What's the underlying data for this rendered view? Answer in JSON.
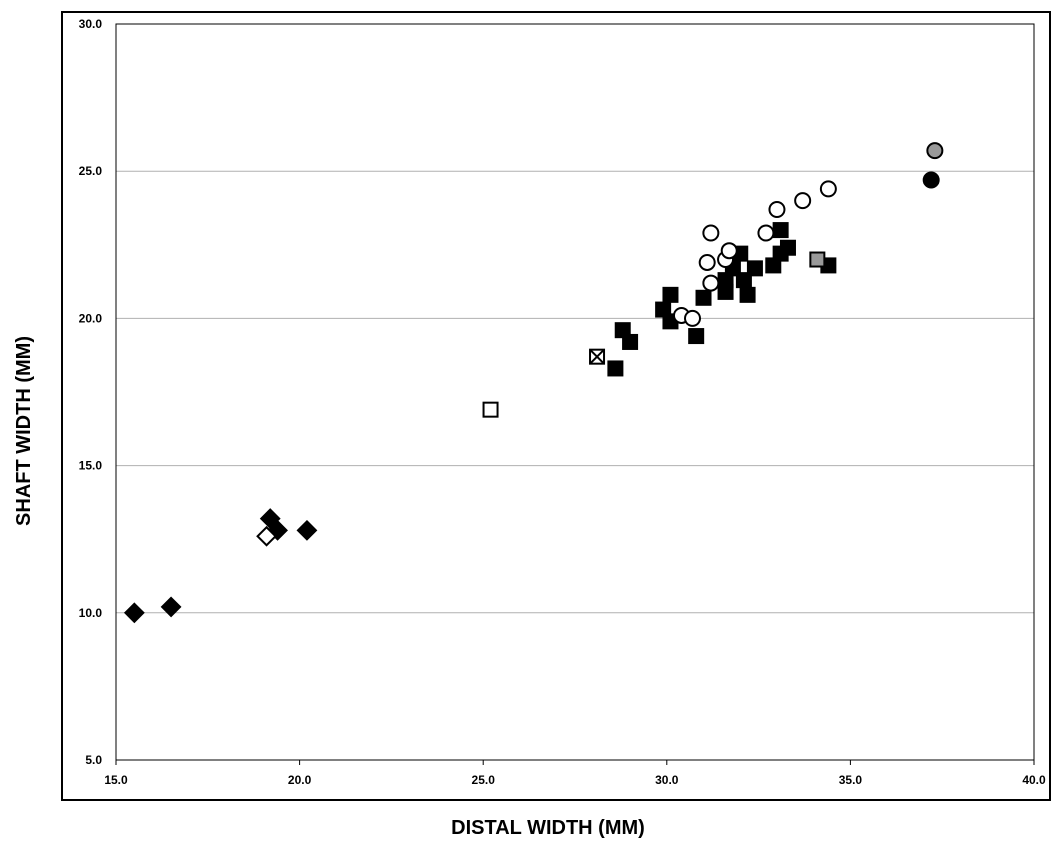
{
  "chart_data": {
    "type": "scatter",
    "title": "",
    "xlabel": "DISTAL WIDTH (MM)",
    "ylabel": "SHAFT WIDTH (MM)",
    "xlim": [
      15.0,
      40.0
    ],
    "ylim": [
      5.0,
      30.0
    ],
    "x_ticks": [
      "15.0",
      "20.0",
      "25.0",
      "30.0",
      "35.0",
      "40.0"
    ],
    "y_ticks": [
      "5.0",
      "10.0",
      "15.0",
      "20.0",
      "25.0",
      "30.0"
    ],
    "grid": "horizontal",
    "legend": "none",
    "colors": {
      "black": "#000000",
      "gray": "#999999",
      "white": "#ffffff",
      "grid": "#b0b0b0"
    },
    "series": [
      {
        "marker": "diamond",
        "fill": "black",
        "points": [
          [
            15.5,
            10.0
          ],
          [
            16.5,
            10.2
          ],
          [
            19.2,
            13.2
          ],
          [
            19.4,
            12.8
          ],
          [
            20.2,
            12.8
          ]
        ]
      },
      {
        "marker": "diamond",
        "fill": "white",
        "points": [
          [
            19.1,
            12.6
          ]
        ]
      },
      {
        "marker": "square",
        "fill": "white",
        "points": [
          [
            25.2,
            16.9
          ]
        ]
      },
      {
        "marker": "square",
        "fill": "crossed",
        "points": [
          [
            28.1,
            18.7
          ]
        ]
      },
      {
        "marker": "square",
        "fill": "black",
        "points": [
          [
            28.6,
            18.3
          ],
          [
            28.8,
            19.6
          ],
          [
            29.0,
            19.2
          ],
          [
            29.9,
            20.3
          ],
          [
            30.1,
            20.8
          ],
          [
            30.1,
            19.9
          ],
          [
            30.8,
            19.4
          ],
          [
            31.0,
            20.7
          ],
          [
            31.6,
            20.9
          ],
          [
            31.6,
            21.3
          ],
          [
            31.8,
            21.7
          ],
          [
            32.0,
            22.2
          ],
          [
            32.1,
            21.3
          ],
          [
            32.2,
            20.8
          ],
          [
            32.4,
            21.7
          ],
          [
            32.9,
            21.8
          ],
          [
            33.1,
            22.2
          ],
          [
            33.1,
            23.0
          ],
          [
            33.3,
            22.4
          ],
          [
            34.4,
            21.8
          ]
        ]
      },
      {
        "marker": "square",
        "fill": "gray",
        "points": [
          [
            34.1,
            22.0
          ]
        ]
      },
      {
        "marker": "circle",
        "fill": "white",
        "points": [
          [
            30.4,
            20.1
          ],
          [
            30.7,
            20.0
          ],
          [
            31.1,
            21.9
          ],
          [
            31.2,
            22.9
          ],
          [
            31.2,
            21.2
          ],
          [
            31.6,
            22.0
          ],
          [
            31.7,
            22.3
          ],
          [
            32.7,
            22.9
          ],
          [
            33.0,
            23.7
          ],
          [
            33.7,
            24.0
          ],
          [
            34.4,
            24.4
          ]
        ]
      },
      {
        "marker": "circle",
        "fill": "gray",
        "points": [
          [
            37.3,
            25.7
          ]
        ]
      },
      {
        "marker": "circle",
        "fill": "black",
        "points": [
          [
            37.2,
            24.7
          ]
        ]
      }
    ]
  }
}
